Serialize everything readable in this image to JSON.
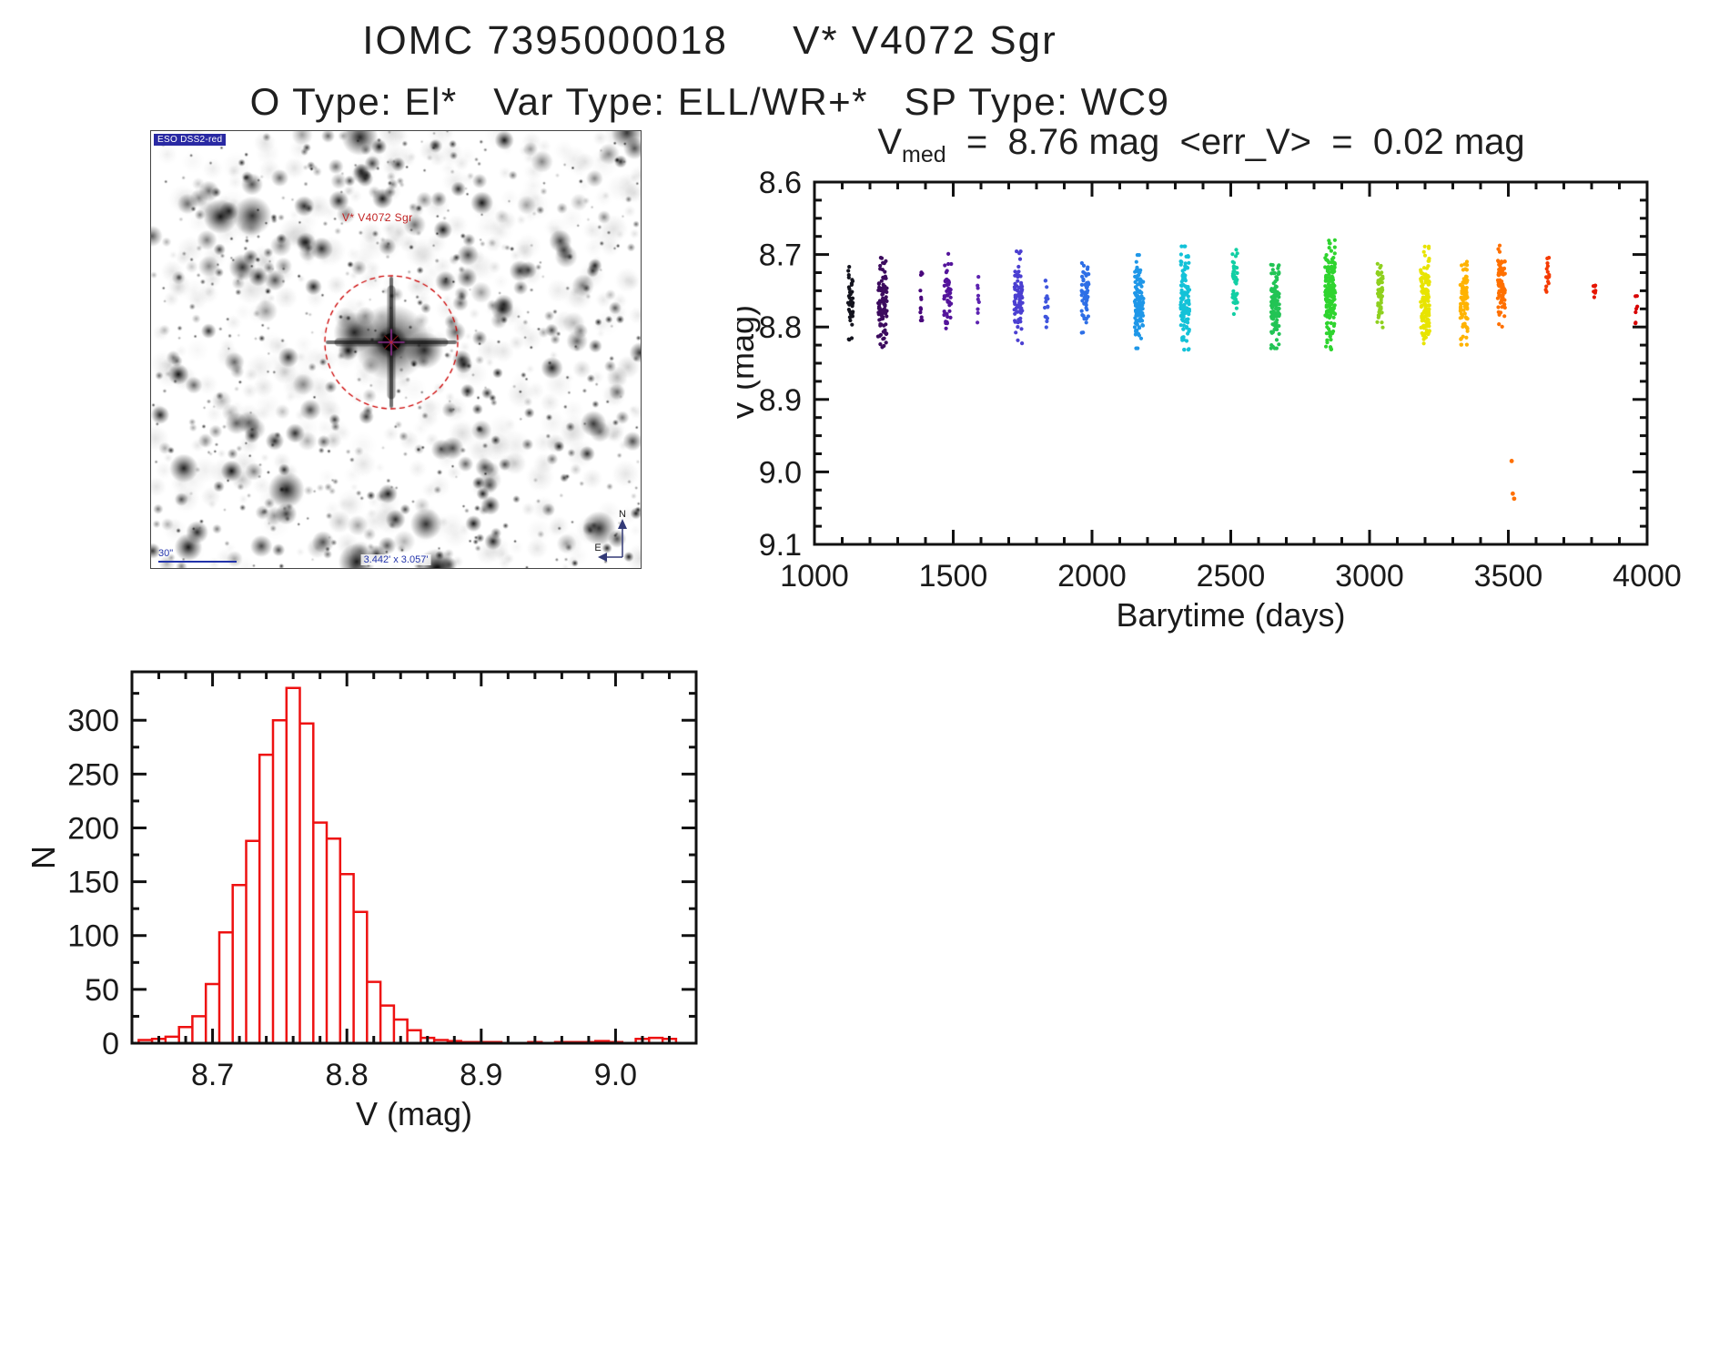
{
  "page": {
    "title": "IOMC 7395000018     V* V4072 Sgr",
    "subtitle": "O Type: El*   Var Type: ELL/WR+*   SP Type: WC9"
  },
  "finding_chart": {
    "survey_label": "ESO DSS2-red",
    "target_label": "V* V4072 Sgr",
    "scale_label": "30\"",
    "fov_label": "3.442' x 3.057'",
    "compass_north": "N",
    "compass_east": "E"
  },
  "chart_data": [
    {
      "type": "scatter",
      "title": {
        "prefix": "V",
        "subscript": "med",
        "rest": "  =  8.76 mag  <err_V>  =  0.02 mag"
      },
      "xlabel": "Barytime (days)",
      "ylabel": "V (mag)",
      "xlim": [
        1000,
        4000
      ],
      "ylim": [
        8.6,
        9.1
      ],
      "y_inverted_magnitude_axis": true,
      "x_ticks": [
        {
          "v": 1000,
          "label": "1000"
        },
        {
          "v": 1500,
          "label": "1500"
        },
        {
          "v": 2000,
          "label": "2000"
        },
        {
          "v": 2500,
          "label": "2500"
        },
        {
          "v": 3000,
          "label": "3000"
        },
        {
          "v": 3500,
          "label": "3500"
        },
        {
          "v": 4000,
          "label": "4000"
        }
      ],
      "y_ticks": [
        {
          "v": 8.6,
          "label": "8.6"
        },
        {
          "v": 8.7,
          "label": "8.7"
        },
        {
          "v": 8.8,
          "label": "8.8"
        },
        {
          "v": 8.9,
          "label": "8.9"
        },
        {
          "v": 9.0,
          "label": "9.0"
        },
        {
          "v": 9.1,
          "label": "9.1"
        }
      ],
      "x_minor": 100,
      "y_minor": 0.025,
      "point_radius": 2.1,
      "clusters": [
        {
          "x": 1130,
          "x_spread": 9,
          "v": 8.762,
          "v_spread": 0.026,
          "n": 38,
          "color": "#14141e"
        },
        {
          "x": 1245,
          "x_spread": 16,
          "v": 8.77,
          "v_spread": 0.03,
          "n": 95,
          "color": "#3c0b5e"
        },
        {
          "x": 1385,
          "x_spread": 5,
          "v": 8.765,
          "v_spread": 0.02,
          "n": 12,
          "color": "#49087c"
        },
        {
          "x": 1480,
          "x_spread": 13,
          "v": 8.755,
          "v_spread": 0.026,
          "n": 48,
          "color": "#54149b"
        },
        {
          "x": 1590,
          "x_spread": 4,
          "v": 8.76,
          "v_spread": 0.018,
          "n": 9,
          "color": "#5c22b0"
        },
        {
          "x": 1735,
          "x_spread": 15,
          "v": 8.76,
          "v_spread": 0.028,
          "n": 75,
          "color": "#4b3fd1"
        },
        {
          "x": 1835,
          "x_spread": 6,
          "v": 8.762,
          "v_spread": 0.02,
          "n": 16,
          "color": "#3f55dd"
        },
        {
          "x": 1975,
          "x_spread": 13,
          "v": 8.755,
          "v_spread": 0.023,
          "n": 55,
          "color": "#2e6fe6"
        },
        {
          "x": 2170,
          "x_spread": 16,
          "v": 8.765,
          "v_spread": 0.028,
          "n": 115,
          "color": "#1f97e8"
        },
        {
          "x": 2335,
          "x_spread": 16,
          "v": 8.76,
          "v_spread": 0.031,
          "n": 125,
          "color": "#14c2d8"
        },
        {
          "x": 2515,
          "x_spread": 9,
          "v": 8.742,
          "v_spread": 0.024,
          "n": 42,
          "color": "#12cfa4"
        },
        {
          "x": 2660,
          "x_spread": 15,
          "v": 8.765,
          "v_spread": 0.028,
          "n": 115,
          "color": "#22c455"
        },
        {
          "x": 2858,
          "x_spread": 18,
          "v": 8.755,
          "v_spread": 0.033,
          "n": 165,
          "color": "#2fd42f"
        },
        {
          "x": 3038,
          "x_spread": 10,
          "v": 8.75,
          "v_spread": 0.022,
          "n": 60,
          "color": "#8ed01e"
        },
        {
          "x": 3200,
          "x_spread": 16,
          "v": 8.758,
          "v_spread": 0.03,
          "n": 125,
          "color": "#e8e400"
        },
        {
          "x": 3340,
          "x_spread": 13,
          "v": 8.76,
          "v_spread": 0.028,
          "n": 95,
          "color": "#ffb300"
        },
        {
          "x": 3475,
          "x_spread": 13,
          "v": 8.745,
          "v_spread": 0.025,
          "n": 85,
          "color": "#ff7000"
        },
        {
          "x": 3640,
          "x_spread": 8,
          "v": 8.732,
          "v_spread": 0.012,
          "n": 16,
          "color": "#f53a00"
        },
        {
          "x": 3810,
          "x_spread": 5,
          "v": 8.736,
          "v_spread": 0.01,
          "n": 7,
          "color": "#e61500"
        },
        {
          "x": 3962,
          "x_spread": 5,
          "v": 8.77,
          "v_spread": 0.02,
          "n": 7,
          "color": "#d80000"
        }
      ],
      "outliers": [
        {
          "x": 3512,
          "v": 8.985,
          "color": "#ff7000"
        },
        {
          "x": 3516,
          "v": 9.03,
          "color": "#ff7000"
        },
        {
          "x": 3521,
          "v": 9.037,
          "color": "#ff7000"
        }
      ]
    },
    {
      "type": "histogram",
      "xlabel": "V (mag)",
      "ylabel": "N",
      "xlim": [
        8.64,
        9.06
      ],
      "ylim": [
        0,
        345
      ],
      "x_ticks": [
        {
          "v": 8.7,
          "label": "8.7"
        },
        {
          "v": 8.8,
          "label": "8.8"
        },
        {
          "v": 8.9,
          "label": "8.9"
        },
        {
          "v": 9.0,
          "label": "9.0"
        }
      ],
      "y_ticks": [
        {
          "v": 0,
          "label": "0"
        },
        {
          "v": 50,
          "label": "50"
        },
        {
          "v": 100,
          "label": "100"
        },
        {
          "v": 150,
          "label": "150"
        },
        {
          "v": 200,
          "label": "200"
        },
        {
          "v": 250,
          "label": "250"
        },
        {
          "v": 300,
          "label": "300"
        }
      ],
      "x_minor": 0.02,
      "y_minor": 25,
      "bin_start": 8.645,
      "bin_width": 0.01,
      "counts": [
        3,
        4,
        6,
        15,
        25,
        55,
        103,
        147,
        188,
        268,
        300,
        330,
        297,
        205,
        190,
        157,
        122,
        57,
        35,
        22,
        12,
        5,
        3,
        2,
        1,
        1,
        1,
        0,
        0,
        1,
        0,
        1,
        1,
        1,
        2,
        1,
        0,
        4,
        5,
        4
      ],
      "color": "#ee1111"
    }
  ]
}
